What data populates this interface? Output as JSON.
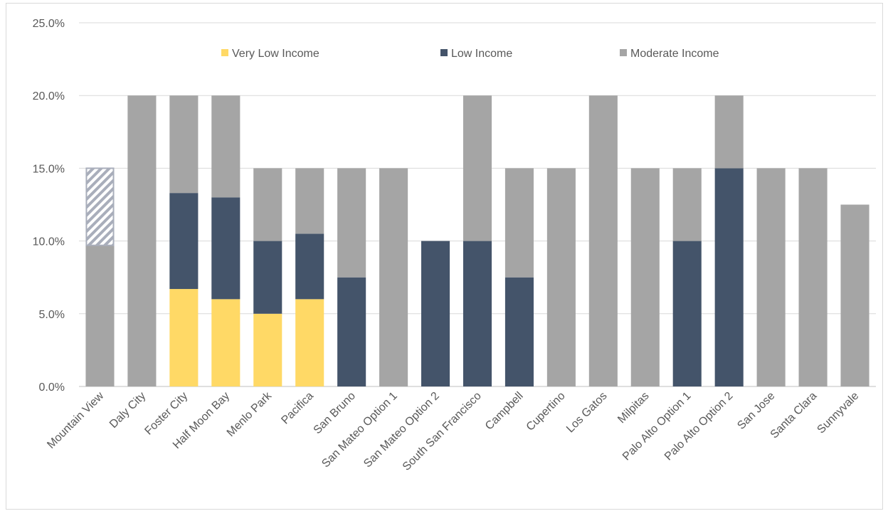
{
  "chart_data": {
    "type": "bar",
    "stacked": true,
    "title": "",
    "xlabel": "",
    "ylabel": "",
    "ylim": [
      0,
      25
    ],
    "yticks": [
      "0.0%",
      "5.0%",
      "10.0%",
      "15.0%",
      "20.0%",
      "25.0%"
    ],
    "grid": true,
    "legend": "top",
    "categories": [
      "Mountain View",
      "Daly City",
      "Foster City",
      "Half Moon Bay",
      "Menlo Park",
      "Pacifica",
      "San Bruno",
      "San Mateo Option 1",
      "San Mateo Option 2",
      "South San Francisco",
      "Campbell",
      "Cupertino",
      "Los Gatos",
      "Milpitas",
      "Palo Alto Option 1",
      "Palo Alto Option 2",
      "San Jose",
      "Santa Clara",
      "Sunnyvale"
    ],
    "series": [
      {
        "name": "Very Low Income",
        "color": "#ffd966",
        "values": [
          0,
          0,
          6.7,
          6.0,
          5.0,
          6.0,
          0,
          0,
          0,
          0,
          0,
          0,
          0,
          0,
          0,
          0,
          0,
          0,
          0
        ]
      },
      {
        "name": "Low Income",
        "color": "#44546a",
        "values": [
          0,
          0,
          6.6,
          7.0,
          5.0,
          4.5,
          7.5,
          0,
          10.0,
          10.0,
          7.5,
          0,
          0,
          0,
          10.0,
          15.0,
          0,
          0,
          0
        ]
      },
      {
        "name": "Moderate Income",
        "color": "#a5a5a5",
        "values": [
          9.7,
          20.0,
          6.7,
          7.0,
          5.0,
          4.5,
          7.5,
          15.0,
          0,
          10.0,
          7.5,
          15.0,
          20.0,
          15.0,
          5.0,
          5.0,
          15.0,
          15.0,
          12.5
        ]
      }
    ],
    "hatched_segment": {
      "category": "Mountain View",
      "from": 9.7,
      "to": 15.0,
      "pattern": "diagonal-stripes",
      "color": "#a9aebb"
    }
  }
}
